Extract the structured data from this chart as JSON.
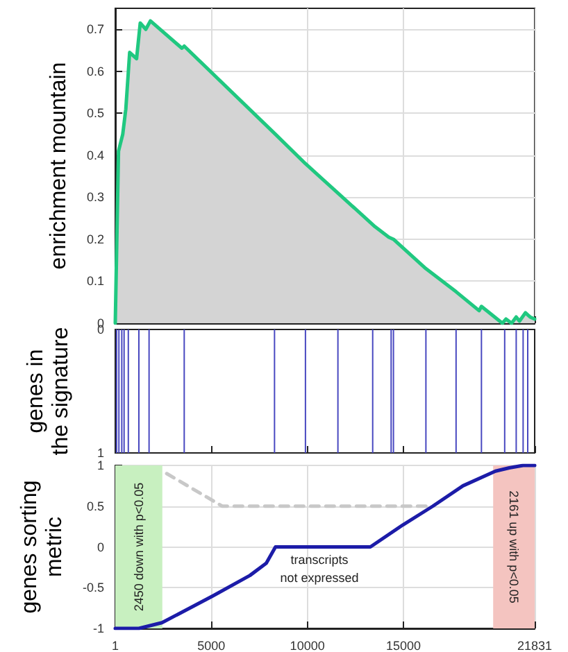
{
  "chart_data": [
    {
      "type": "area",
      "ylabel": "enrichment mountain",
      "xlim": [
        1,
        21831
      ],
      "xticks": [
        1,
        5000,
        10000,
        15000,
        21831
      ],
      "ylim": [
        0,
        0.75
      ],
      "yticks": [
        0,
        0.1,
        0.2,
        0.3,
        0.4,
        0.5,
        0.6,
        0.7
      ],
      "grid": true,
      "tick_labels": "y",
      "series": [
        {
          "color": "#20c880",
          "x": [
            1,
            170,
            390,
            550,
            750,
            1110,
            1300,
            1590,
            1830,
            3470,
            3590,
            8340,
            9900,
            11590,
            13520,
            14240,
            14480,
            16170,
            17740,
            18940,
            19060,
            20150,
            20340,
            20630,
            20870,
            21040,
            21350,
            21590,
            21831
          ],
          "values": [
            0,
            0.41,
            0.45,
            0.51,
            0.645,
            0.63,
            0.715,
            0.7,
            0.72,
            0.655,
            0.66,
            0.45,
            0.38,
            0.31,
            0.23,
            0.205,
            0.2,
            0.13,
            0.075,
            0.03,
            0.04,
            0,
            0.01,
            0,
            0.015,
            0.005,
            0.025,
            0.015,
            0.01
          ]
        }
      ]
    },
    {
      "type": "bar",
      "ylabel": "genes in\nthe signature",
      "xlim": [
        1,
        21831
      ],
      "xticks": [
        1,
        5000,
        10000,
        15000,
        21831
      ],
      "ylim": [
        1,
        0
      ],
      "yticks": [
        0,
        1
      ],
      "tick_labels": "y",
      "x": [
        70,
        190,
        340,
        460,
        680,
        1230,
        1760,
        3590,
        8290,
        9900,
        11590,
        13400,
        14360,
        14480,
        16170,
        17740,
        19060,
        20270,
        20870,
        21230,
        21470
      ],
      "values": [
        1,
        1,
        1,
        1,
        1,
        1,
        1,
        1,
        1,
        1,
        1,
        1,
        1,
        1,
        1,
        1,
        1,
        1,
        1,
        1,
        1
      ],
      "color": "#4848c0"
    },
    {
      "type": "line",
      "ylabel": "genes sorting\nmetric",
      "xlim": [
        1,
        21831
      ],
      "xticks": [
        1,
        5000,
        10000,
        15000,
        21831
      ],
      "ylim": [
        -1,
        1
      ],
      "yticks": [
        -1,
        -0.5,
        0,
        0.5,
        1
      ],
      "grid": true,
      "series": [
        {
          "color": "#1c1ca8",
          "line_style": "solid",
          "x": [
            1,
            1230,
            2430,
            5090,
            7010,
            7860,
            8340,
            13280,
            14970,
            16530,
            18100,
            19790,
            20510,
            21230,
            21831
          ],
          "values": [
            -1,
            -1,
            -0.93,
            -0.6,
            -0.35,
            -0.2,
            0,
            0,
            0.27,
            0.5,
            0.75,
            0.93,
            0.97,
            1,
            1
          ]
        },
        {
          "color": "#c8c8c8",
          "line_style": "dashed",
          "x": [
            2680,
            5570,
            16410
          ],
          "values": [
            0.9,
            0.5,
            0.5
          ]
        }
      ],
      "bands": [
        {
          "axis": "x",
          "from": 1,
          "to": 2450,
          "label": "2450 down with p<0.05",
          "color": "#c8f0c0"
        },
        {
          "axis": "x",
          "from": 19670,
          "to": 21831,
          "label": "2161 up with p<0.05",
          "color": "#f4c4c0"
        }
      ],
      "annotations": [
        "transcripts\nnot expressed"
      ]
    }
  ]
}
